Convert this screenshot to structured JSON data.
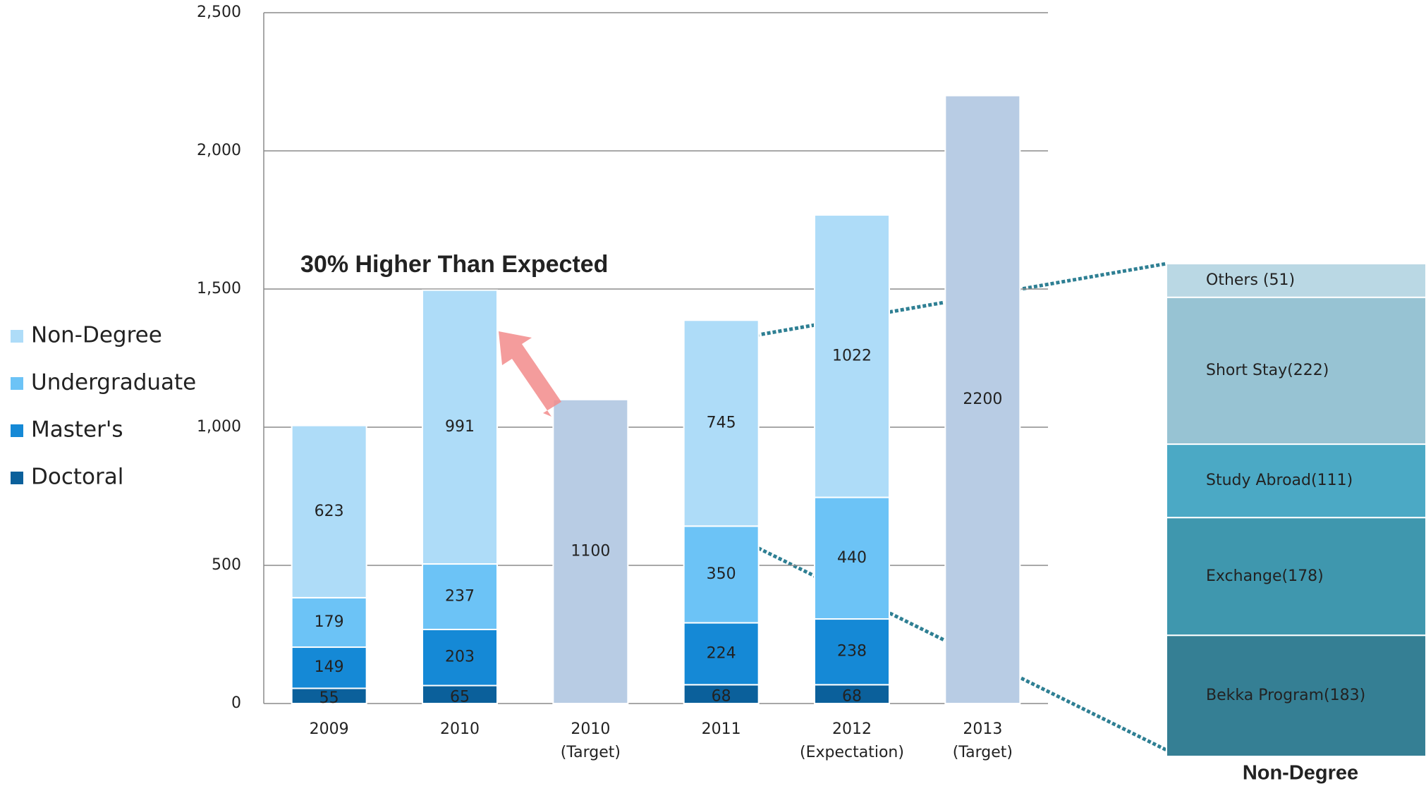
{
  "chart_data": [
    {
      "type": "stacked_bar",
      "annotation": "30% Higher Than Expected",
      "categories": [
        [
          "2009"
        ],
        [
          "2010"
        ],
        [
          "2010",
          "(Target)"
        ],
        [
          "2011"
        ],
        [
          "2012",
          "(Expectation)"
        ],
        [
          "2013",
          "(Target)"
        ]
      ],
      "series": [
        {
          "name": "Doctoral",
          "color": "#0b609b",
          "values": [
            55,
            65,
            null,
            68,
            68,
            null
          ]
        },
        {
          "name": "Master's",
          "color": "#1589d6",
          "values": [
            149,
            203,
            null,
            224,
            238,
            null
          ]
        },
        {
          "name": "Undergraduate",
          "color": "#6cc3f6",
          "values": [
            179,
            237,
            null,
            350,
            440,
            null
          ]
        },
        {
          "name": "Non-Degree",
          "color": "#aedcf8",
          "values": [
            623,
            991,
            null,
            745,
            1022,
            null
          ]
        },
        {
          "color": "#b8cce4",
          "values": [
            null,
            null,
            1100,
            null,
            null,
            2200
          ]
        }
      ],
      "ylim": [
        0,
        2500
      ],
      "yticks": [
        0,
        500,
        {
          "value": 1000,
          "label": "1,000"
        },
        {
          "value": 1500,
          "label": "1,500"
        },
        {
          "value": 2000,
          "label": "2,000"
        },
        {
          "value": 2500,
          "label": "2,500"
        }
      ],
      "grid": true,
      "legend": "left"
    },
    {
      "type": "breakdown",
      "title": "Non-Degree",
      "categories": [
        "Others (51)",
        "Short Stay(222)",
        "Study Abroad(111)",
        "Exchange(178)",
        "Bekka Program(183)"
      ],
      "values": [
        51,
        222,
        111,
        178,
        183
      ],
      "colors": [
        "#bad8e4",
        "#97c3d3",
        "#4ba9c5",
        "#3f97ae",
        "#357f94"
      ]
    }
  ]
}
